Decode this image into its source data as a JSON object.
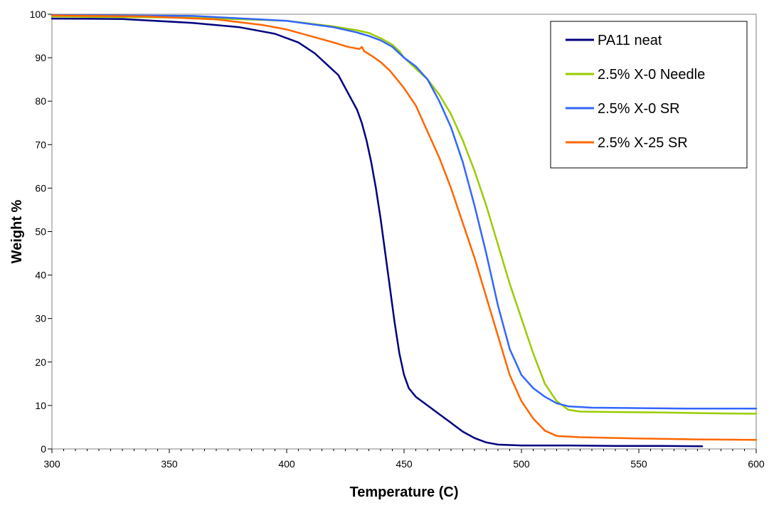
{
  "chart_data": {
    "type": "line",
    "title": "",
    "xlabel": "Temperature (C)",
    "ylabel": "Weight %",
    "xlim": [
      300,
      600
    ],
    "ylim": [
      0,
      100
    ],
    "x_ticks": [
      300,
      350,
      400,
      450,
      500,
      550,
      600
    ],
    "y_ticks": [
      0,
      10,
      20,
      30,
      40,
      50,
      60,
      70,
      80,
      90,
      100
    ],
    "x_tick_labels": [
      "300",
      "350",
      "400",
      "450",
      "500",
      "550",
      "600"
    ],
    "y_tick_labels": [
      "0",
      "10",
      "20",
      "30",
      "40",
      "50",
      "60",
      "70",
      "80",
      "90",
      "100"
    ],
    "grid": false,
    "legend_position": "top-right",
    "series": [
      {
        "name": "PA11 neat",
        "color": "#000080",
        "points": [
          [
            300,
            99
          ],
          [
            330,
            98.9
          ],
          [
            360,
            98
          ],
          [
            380,
            97
          ],
          [
            395,
            95.5
          ],
          [
            405,
            93.5
          ],
          [
            412,
            91
          ],
          [
            418,
            88
          ],
          [
            422,
            86
          ],
          [
            426,
            82
          ],
          [
            428,
            80
          ],
          [
            430,
            78
          ],
          [
            432,
            75
          ],
          [
            434,
            71
          ],
          [
            436,
            66
          ],
          [
            438,
            60
          ],
          [
            440,
            53
          ],
          [
            442,
            45
          ],
          [
            444,
            37
          ],
          [
            446,
            29
          ],
          [
            448,
            22
          ],
          [
            450,
            17
          ],
          [
            452,
            14
          ],
          [
            455,
            12
          ],
          [
            460,
            10
          ],
          [
            465,
            8
          ],
          [
            470,
            6
          ],
          [
            475,
            4
          ],
          [
            480,
            2.5
          ],
          [
            485,
            1.5
          ],
          [
            490,
            1
          ],
          [
            500,
            0.8
          ],
          [
            520,
            0.8
          ],
          [
            540,
            0.7
          ],
          [
            560,
            0.7
          ],
          [
            577,
            0.6
          ]
        ]
      },
      {
        "name": "2.5% X-0 Needle",
        "color": "#99CC00",
        "points": [
          [
            300,
            99.5
          ],
          [
            360,
            99.2
          ],
          [
            400,
            98.5
          ],
          [
            420,
            97.2
          ],
          [
            430,
            96.3
          ],
          [
            435,
            95.7
          ],
          [
            440,
            94.5
          ],
          [
            445,
            93
          ],
          [
            448,
            91.5
          ],
          [
            450,
            90
          ],
          [
            452,
            89
          ],
          [
            455,
            87.5
          ],
          [
            460,
            85
          ],
          [
            465,
            81.5
          ],
          [
            470,
            77
          ],
          [
            475,
            71
          ],
          [
            480,
            64
          ],
          [
            485,
            56
          ],
          [
            490,
            47
          ],
          [
            495,
            38
          ],
          [
            500,
            30
          ],
          [
            505,
            22
          ],
          [
            510,
            15
          ],
          [
            515,
            11
          ],
          [
            520,
            9
          ],
          [
            525,
            8.6
          ],
          [
            540,
            8.5
          ],
          [
            560,
            8.4
          ],
          [
            580,
            8.2
          ],
          [
            600,
            8.1
          ]
        ]
      },
      {
        "name": "2.5% X-0 SR",
        "color": "#3366FF",
        "points": [
          [
            300,
            99.8
          ],
          [
            360,
            99.6
          ],
          [
            400,
            98.5
          ],
          [
            420,
            97
          ],
          [
            430,
            95.8
          ],
          [
            435,
            95
          ],
          [
            440,
            94
          ],
          [
            445,
            92.5
          ],
          [
            450,
            90
          ],
          [
            455,
            88
          ],
          [
            460,
            85
          ],
          [
            465,
            80
          ],
          [
            470,
            74
          ],
          [
            475,
            66
          ],
          [
            480,
            56
          ],
          [
            485,
            45
          ],
          [
            490,
            33
          ],
          [
            495,
            23
          ],
          [
            500,
            17
          ],
          [
            505,
            14
          ],
          [
            510,
            12
          ],
          [
            515,
            10.5
          ],
          [
            520,
            9.8
          ],
          [
            530,
            9.5
          ],
          [
            550,
            9.4
          ],
          [
            570,
            9.3
          ],
          [
            600,
            9.3
          ]
        ]
      },
      {
        "name": "2.5% X-25 SR",
        "color": "#FF6600",
        "points": [
          [
            300,
            99.7
          ],
          [
            340,
            99.5
          ],
          [
            370,
            98.8
          ],
          [
            390,
            97.5
          ],
          [
            400,
            96.5
          ],
          [
            410,
            95
          ],
          [
            420,
            93.5
          ],
          [
            426,
            92.5
          ],
          [
            431,
            92
          ],
          [
            432,
            92.5
          ],
          [
            433,
            91.5
          ],
          [
            436,
            90.5
          ],
          [
            440,
            89
          ],
          [
            444,
            87
          ],
          [
            447,
            85
          ],
          [
            450,
            83
          ],
          [
            455,
            79
          ],
          [
            460,
            73
          ],
          [
            465,
            67
          ],
          [
            470,
            60
          ],
          [
            475,
            52
          ],
          [
            480,
            44
          ],
          [
            485,
            35
          ],
          [
            490,
            26
          ],
          [
            495,
            17
          ],
          [
            500,
            11
          ],
          [
            505,
            7
          ],
          [
            510,
            4.2
          ],
          [
            515,
            3
          ],
          [
            525,
            2.7
          ],
          [
            550,
            2.4
          ],
          [
            575,
            2.2
          ],
          [
            600,
            2.1
          ]
        ]
      }
    ]
  }
}
